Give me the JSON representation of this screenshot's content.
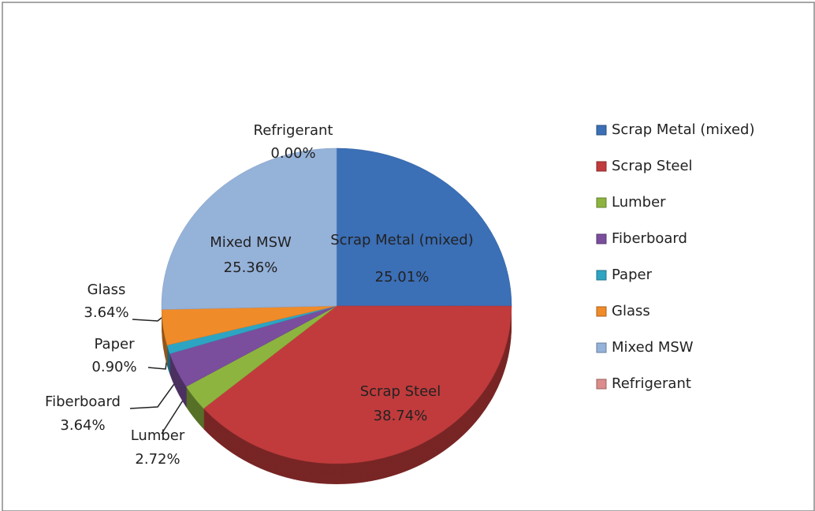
{
  "chart_data": {
    "type": "pie",
    "categories": [
      "Scrap Metal (mixed)",
      "Scrap Steel",
      "Lumber",
      "Fiberboard",
      "Paper",
      "Glass",
      "Mixed MSW",
      "Refrigerant"
    ],
    "values": [
      25.01,
      38.74,
      2.72,
      3.64,
      0.9,
      3.64,
      25.36,
      0.0
    ],
    "value_labels": [
      "25.01%",
      "38.74%",
      "2.72%",
      "3.64%",
      "0.90%",
      "3.64%",
      "25.36%",
      "0.00%"
    ],
    "colors": [
      "#3b6fb6",
      "#c13b3c",
      "#8db43f",
      "#7a4e9d",
      "#2ea4c3",
      "#f08b29",
      "#95b2d9",
      "#db8c8b"
    ],
    "legend": "right"
  }
}
